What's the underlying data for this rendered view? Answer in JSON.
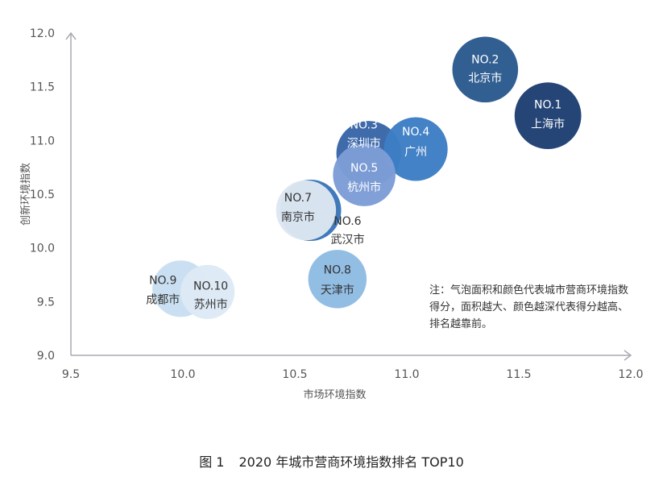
{
  "chart_data": {
    "type": "scatter",
    "xlabel": "市场环境指数",
    "ylabel": "创新环境指数",
    "xlim": [
      9.5,
      12.0
    ],
    "ylim": [
      9.0,
      12.0
    ],
    "x_ticks": [
      "9.5",
      "10.0",
      "10.5",
      "11.0",
      "11.5",
      "12.0"
    ],
    "y_ticks": [
      "9.0",
      "9.5",
      "10.0",
      "10.5",
      "11.0",
      "11.5",
      "12.0"
    ],
    "grid": false,
    "points": [
      {
        "rank": "NO.1",
        "city": "上海市",
        "x": 11.63,
        "y": 11.23,
        "size": 10,
        "color": "#1f3f73"
      },
      {
        "rank": "NO.2",
        "city": "北京市",
        "x": 11.35,
        "y": 11.66,
        "size": 9,
        "color": "#2b5a8e"
      },
      {
        "rank": "NO.3",
        "city": "深圳市",
        "x": 10.83,
        "y": 10.88,
        "size": 8,
        "color": "#3a66a8"
      },
      {
        "rank": "NO.4",
        "city": "广州",
        "x": 11.04,
        "y": 10.92,
        "size": 7,
        "color": "#3d7ec4"
      },
      {
        "rank": "NO.5",
        "city": "杭州市",
        "x": 10.81,
        "y": 10.68,
        "size": 6,
        "color": "#7d9dd6"
      },
      {
        "rank": "NO.6",
        "city": "武汉市",
        "x": 10.57,
        "y": 10.35,
        "size": 5,
        "color": "#3a76b8"
      },
      {
        "rank": "NO.7",
        "city": "南京市",
        "x": 10.55,
        "y": 10.35,
        "size": 4,
        "color": "#dde6f2"
      },
      {
        "rank": "NO.8",
        "city": "天津市",
        "x": 10.69,
        "y": 9.71,
        "size": 3,
        "color": "#8fbce3"
      },
      {
        "rank": "NO.9",
        "city": "成都市",
        "x": 9.99,
        "y": 9.62,
        "size": 2,
        "color": "#c8dff2"
      },
      {
        "rank": "NO.10",
        "city": "苏州市",
        "x": 10.11,
        "y": 9.59,
        "size": 1,
        "color": "#dde9f5"
      }
    ]
  },
  "note": "注：气泡面积和颜色代表城市营商环境指数得分，面积越大、颜色越深代表得分越高、排名越靠前。",
  "caption": {
    "figure": "图 1",
    "title": "2020 年城市营商环境指数排名 TOP10"
  }
}
